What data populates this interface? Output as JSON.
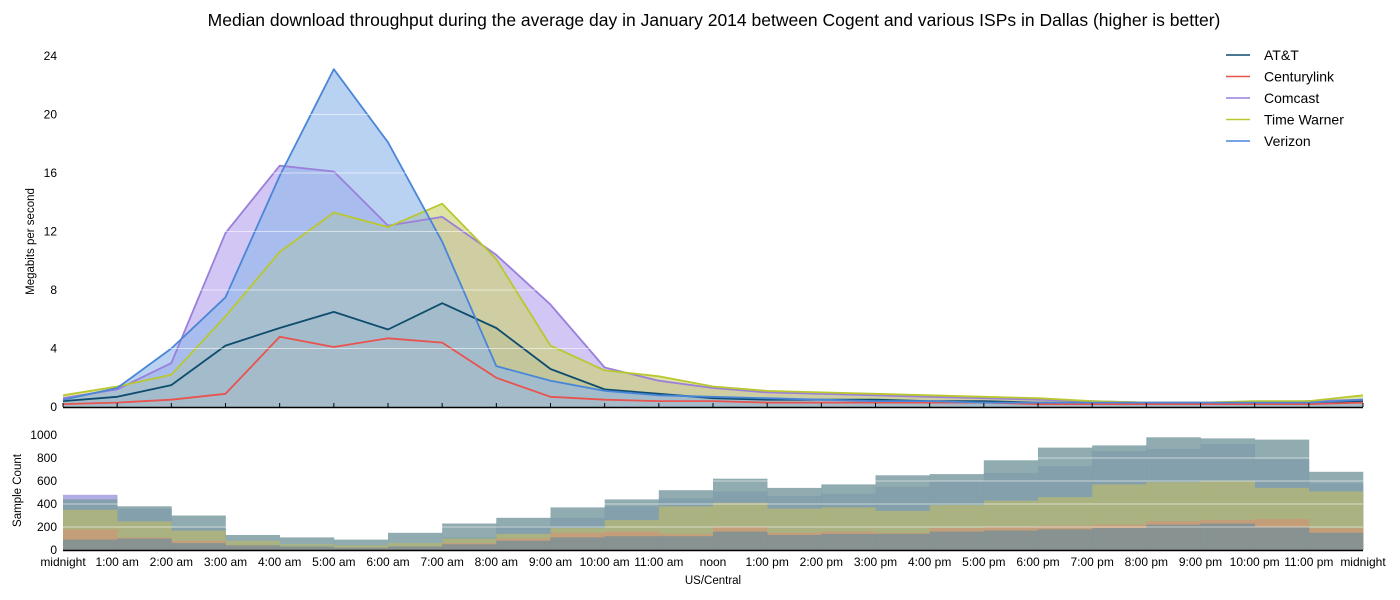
{
  "chart_data": [
    {
      "type": "area",
      "title": "Median download throughput during the average day in January 2014 between Cogent and various ISPs in Dallas (higher is better)",
      "xlabel": "",
      "ylabel": "Megabits per second",
      "ylim": [
        0,
        24
      ],
      "yticks": [
        0,
        4,
        8,
        12,
        16,
        20,
        24
      ],
      "grid": "horizontal",
      "legend_position": "top-right",
      "x": [
        "midnight",
        "1:00 am",
        "2:00 am",
        "3:00 am",
        "4:00 am",
        "5:00 am",
        "6:00 am",
        "7:00 am",
        "8:00 am",
        "9:00 am",
        "10:00 am",
        "11:00 am",
        "noon",
        "1:00 pm",
        "2:00 pm",
        "3:00 pm",
        "4:00 pm",
        "5:00 pm",
        "6:00 pm",
        "7:00 pm",
        "8:00 pm",
        "9:00 pm",
        "10:00 pm",
        "11:00 pm",
        "midnight"
      ],
      "series": [
        {
          "name": "AT&T",
          "color": "#0e4c6e",
          "fill": "#7aa0a8",
          "values": [
            0.4,
            0.7,
            1.5,
            4.2,
            5.4,
            6.5,
            5.3,
            7.1,
            5.4,
            2.6,
            1.2,
            0.9,
            0.6,
            0.5,
            0.5,
            0.5,
            0.4,
            0.4,
            0.3,
            0.3,
            0.3,
            0.3,
            0.3,
            0.3,
            0.4
          ]
        },
        {
          "name": "Centurylink",
          "color": "#e8534f",
          "fill": "#e8a07a",
          "values": [
            0.2,
            0.3,
            0.5,
            0.9,
            4.8,
            4.1,
            4.7,
            4.4,
            2.0,
            0.7,
            0.5,
            0.4,
            0.4,
            0.3,
            0.3,
            0.3,
            0.3,
            0.3,
            0.2,
            0.2,
            0.2,
            0.2,
            0.2,
            0.2,
            0.3
          ]
        },
        {
          "name": "Comcast",
          "color": "#9b7fdb",
          "fill": "#b6a3ee",
          "values": [
            0.6,
            1.2,
            3.0,
            11.9,
            16.5,
            16.1,
            12.4,
            13.0,
            10.4,
            7.0,
            2.7,
            1.8,
            1.3,
            1.0,
            0.9,
            0.8,
            0.7,
            0.6,
            0.5,
            0.4,
            0.3,
            0.3,
            0.3,
            0.4,
            0.5
          ]
        },
        {
          "name": "Time Warner",
          "color": "#b9c82e",
          "fill": "#ccd470",
          "values": [
            0.8,
            1.4,
            2.2,
            6.2,
            10.6,
            13.3,
            12.3,
            13.9,
            10.1,
            4.2,
            2.5,
            2.1,
            1.4,
            1.1,
            1.0,
            0.9,
            0.8,
            0.7,
            0.6,
            0.4,
            0.3,
            0.3,
            0.4,
            0.4,
            0.8
          ]
        },
        {
          "name": "Verizon",
          "color": "#4a86d8",
          "fill": "#90b6ea",
          "values": [
            0.5,
            1.3,
            4.0,
            7.5,
            15.8,
            23.1,
            18.1,
            11.3,
            2.8,
            1.8,
            1.1,
            0.8,
            0.7,
            0.6,
            0.5,
            0.4,
            0.4,
            0.3,
            0.3,
            0.3,
            0.3,
            0.3,
            0.3,
            0.3,
            0.5
          ]
        }
      ]
    },
    {
      "type": "bar",
      "title": "",
      "xlabel": "US/Central",
      "ylabel": "Sample Count",
      "ylim": [
        0,
        1000
      ],
      "yticks": [
        0,
        200,
        400,
        600,
        800,
        1000
      ],
      "grid": "horizontal",
      "categories": [
        "midnight",
        "1:00 am",
        "2:00 am",
        "3:00 am",
        "4:00 am",
        "5:00 am",
        "6:00 am",
        "7:00 am",
        "8:00 am",
        "9:00 am",
        "10:00 am",
        "11:00 am",
        "noon",
        "1:00 pm",
        "2:00 pm",
        "3:00 pm",
        "4:00 pm",
        "5:00 pm",
        "6:00 pm",
        "7:00 pm",
        "8:00 pm",
        "9:00 pm",
        "10:00 pm",
        "11:00 pm"
      ],
      "tick_labels": [
        "midnight",
        "1:00 am",
        "2:00 am",
        "3:00 am",
        "4:00 am",
        "5:00 am",
        "6:00 am",
        "7:00 am",
        "8:00 am",
        "9:00 am",
        "10:00 am",
        "11:00 am",
        "noon",
        "1:00 pm",
        "2:00 pm",
        "3:00 pm",
        "4:00 pm",
        "5:00 pm",
        "6:00 pm",
        "7:00 pm",
        "8:00 pm",
        "9:00 pm",
        "10:00 pm",
        "11:00 pm",
        "midnight"
      ],
      "series": [
        {
          "name": "Comcast",
          "fill": "#a39ce0",
          "values": [
            480,
            360,
            190,
            60,
            40,
            30,
            50,
            110,
            210,
            280,
            380,
            450,
            510,
            470,
            490,
            550,
            600,
            670,
            730,
            860,
            880,
            920,
            790,
            580
          ]
        },
        {
          "name": "Verizon",
          "fill": "#7d9ea2",
          "values": [
            440,
            380,
            300,
            130,
            110,
            90,
            150,
            230,
            280,
            370,
            440,
            520,
            620,
            540,
            570,
            650,
            660,
            780,
            890,
            910,
            980,
            970,
            960,
            680
          ]
        },
        {
          "name": "Time Warner",
          "fill": "#b0b57a",
          "values": [
            350,
            250,
            170,
            80,
            50,
            40,
            60,
            100,
            140,
            190,
            260,
            380,
            410,
            360,
            370,
            340,
            390,
            430,
            460,
            570,
            590,
            600,
            540,
            510
          ]
        },
        {
          "name": "Centurylink",
          "fill": "#c89a78",
          "values": [
            180,
            110,
            80,
            40,
            20,
            20,
            30,
            60,
            100,
            150,
            160,
            140,
            200,
            150,
            160,
            150,
            190,
            200,
            210,
            220,
            250,
            260,
            270,
            190
          ]
        },
        {
          "name": "AT&T",
          "fill": "#7d8f95",
          "values": [
            90,
            100,
            60,
            40,
            30,
            20,
            30,
            50,
            80,
            110,
            120,
            120,
            160,
            130,
            140,
            140,
            160,
            170,
            180,
            190,
            220,
            230,
            200,
            150
          ]
        }
      ]
    }
  ]
}
